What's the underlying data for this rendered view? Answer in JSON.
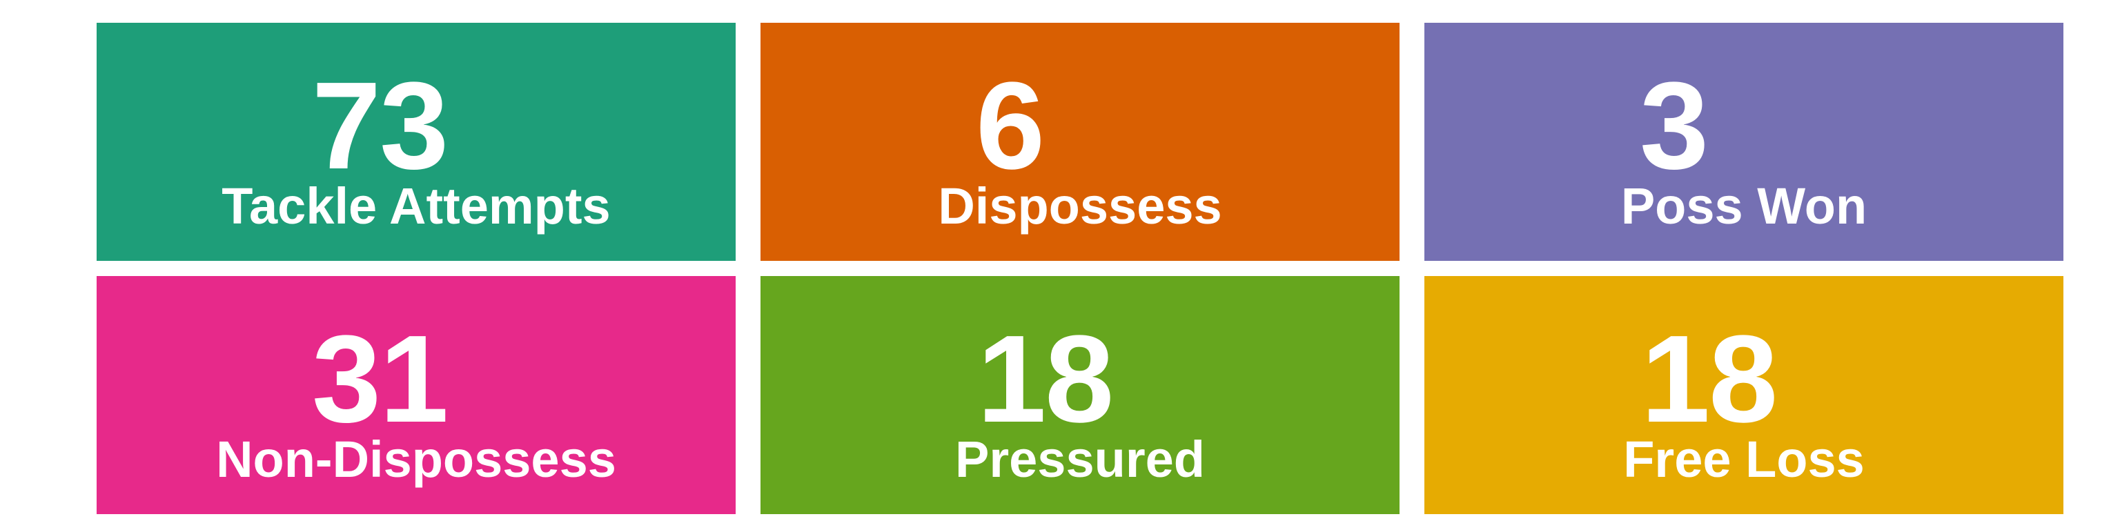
{
  "tiles": [
    {
      "value": "73",
      "label": "Tackle Attempts",
      "color": "#1e9e79"
    },
    {
      "value": "6",
      "label": "Dispossess",
      "color": "#d95f02"
    },
    {
      "value": "3",
      "label": "Poss Won",
      "color": "#7570b3"
    },
    {
      "value": "31",
      "label": "Non-Dispossess",
      "color": "#e7298a"
    },
    {
      "value": "18",
      "label": "Pressured",
      "color": "#66a61e"
    },
    {
      "value": "18",
      "label": "Free Loss",
      "color": "#e6ab02"
    }
  ]
}
